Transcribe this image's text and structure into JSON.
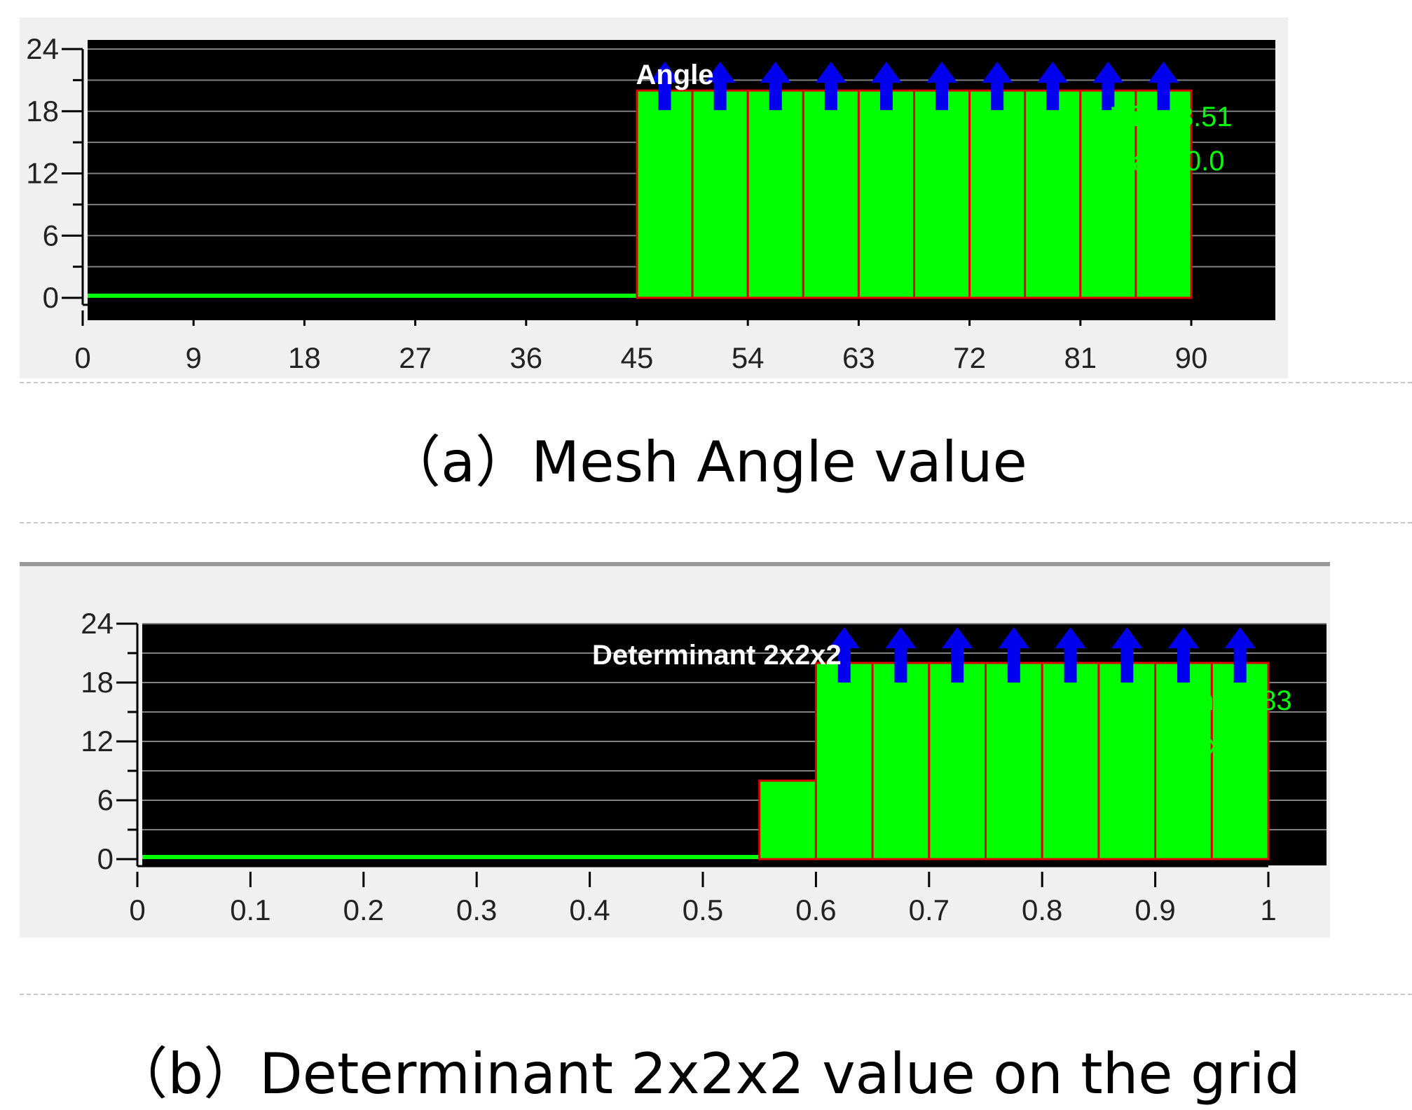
{
  "captions": {
    "a": "（a）Mesh Angle value",
    "b": "（b）Determinant 2x2x2 value on the grid"
  },
  "chart_data": [
    {
      "type": "bar",
      "title": "Angle",
      "xlabel": "",
      "ylabel": "",
      "xlim": [
        0,
        90
      ],
      "ylim": [
        0,
        24
      ],
      "xticks": [
        "0",
        "9",
        "18",
        "27",
        "36",
        "45",
        "54",
        "63",
        "72",
        "81",
        "90"
      ],
      "yticks": [
        "0",
        "6",
        "12",
        "18",
        "24"
      ],
      "bins": [
        {
          "x0": 0,
          "x1": 45,
          "value": 0
        },
        {
          "x0": 45,
          "x1": 49.5,
          "value": 20
        },
        {
          "x0": 49.5,
          "x1": 54,
          "value": 20
        },
        {
          "x0": 54,
          "x1": 58.5,
          "value": 20
        },
        {
          "x0": 58.5,
          "x1": 63,
          "value": 20
        },
        {
          "x0": 63,
          "x1": 67.5,
          "value": 20
        },
        {
          "x0": 67.5,
          "x1": 72,
          "value": 20
        },
        {
          "x0": 72,
          "x1": 76.5,
          "value": 20
        },
        {
          "x0": 76.5,
          "x1": 81,
          "value": 20
        },
        {
          "x0": 81,
          "x1": 85.5,
          "value": 20
        },
        {
          "x0": 85.5,
          "x1": 90,
          "value": 20
        }
      ],
      "annotations": [
        "Min 48.51",
        "Max 90.0"
      ],
      "grid": true,
      "colors": {
        "plot_bg": "#000000",
        "bar": "#00ff00",
        "bar_edge": "#e00000",
        "arrow": "#0000ee",
        "grid": "#808080"
      }
    },
    {
      "type": "bar",
      "title": "Determinant 2x2x2",
      "xlabel": "",
      "ylabel": "",
      "xlim": [
        0,
        1
      ],
      "ylim": [
        0,
        24
      ],
      "xticks": [
        "0",
        "0.1",
        "0.2",
        "0.3",
        "0.4",
        "0.5",
        "0.6",
        "0.7",
        "0.8",
        "0.9",
        "1"
      ],
      "yticks": [
        "0",
        "6",
        "12",
        "18",
        "24"
      ],
      "bins": [
        {
          "x0": 0,
          "x1": 0.55,
          "value": 0
        },
        {
          "x0": 0.55,
          "x1": 0.6,
          "value": 8
        },
        {
          "x0": 0.6,
          "x1": 0.65,
          "value": 20
        },
        {
          "x0": 0.65,
          "x1": 0.7,
          "value": 20
        },
        {
          "x0": 0.7,
          "x1": 0.75,
          "value": 20
        },
        {
          "x0": 0.75,
          "x1": 0.8,
          "value": 20
        },
        {
          "x0": 0.8,
          "x1": 0.85,
          "value": 20
        },
        {
          "x0": 0.85,
          "x1": 0.9,
          "value": 20
        },
        {
          "x0": 0.9,
          "x1": 0.95,
          "value": 20
        },
        {
          "x0": 0.95,
          "x1": 1,
          "value": 20
        }
      ],
      "annotations": [
        "Min 0.583",
        "Max 1"
      ],
      "grid": true,
      "colors": {
        "plot_bg": "#000000",
        "bar": "#00ff00",
        "bar_edge": "#e00000",
        "arrow": "#0000ee",
        "grid": "#808080"
      }
    }
  ]
}
